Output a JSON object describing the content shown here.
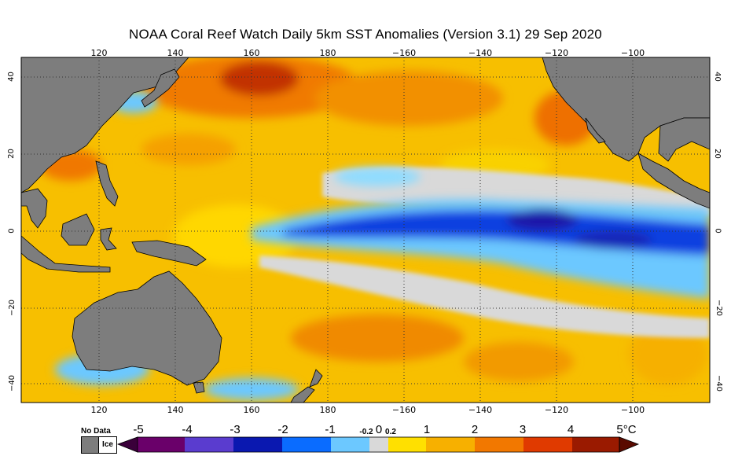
{
  "title": "NOAA Coral Reef Watch Daily 5km SST Anomalies (Version 3.1)  29 Sep 2020",
  "map": {
    "lon_ticks": [
      "120",
      "140",
      "160",
      "180",
      "−160",
      "−140",
      "−120",
      "−100"
    ],
    "lat_ticks": [
      "40",
      "20",
      "0",
      "−20",
      "−40"
    ],
    "colors": {
      "land": "#7d7d7d",
      "ice": "#ffffff",
      "neutral": "#d9d9d9",
      "ocean_warm": "#f5b800",
      "ocean_hot": "#e85d00",
      "ocean_cool": "#7fd0ff",
      "ocean_cold": "#0a34d8"
    }
  },
  "legend": {
    "nodata_label": "No Data",
    "ice_label": "Ice",
    "labels": [
      "-5",
      "-4",
      "-3",
      "-2",
      "-1",
      "1",
      "2",
      "3",
      "4",
      "5°C"
    ],
    "center_zero": "0",
    "center_neg": "-0.2",
    "center_pos": "0.2",
    "unit": "°C"
  }
}
